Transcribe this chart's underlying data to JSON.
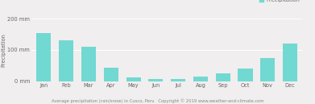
{
  "months": [
    "Jan",
    "Feb",
    "Mar",
    "Apr",
    "May",
    "Jun",
    "Jul",
    "Aug",
    "Sep",
    "Oct",
    "Nov",
    "Dec"
  ],
  "precipitation": [
    155,
    130,
    110,
    42,
    12,
    6,
    8,
    14,
    25,
    40,
    75,
    120
  ],
  "bar_color": "#72d8d2",
  "ylabel": "Precipitation",
  "ylim": [
    0,
    200
  ],
  "yticks": [
    0,
    100,
    200
  ],
  "ytick_labels": [
    "0 mm",
    "100 mm",
    "200 mm"
  ],
  "legend_label": "Precipitation",
  "legend_color": "#72d8d2",
  "footer_text": "Average precipitation (rain/snow) in Cusco, Peru   Copyright © 2019 www.weather-and-climate.com",
  "background_color": "#f0eeee",
  "grid_color": "#ffffff",
  "tick_fontsize": 4.8,
  "ylabel_fontsize": 4.8,
  "legend_fontsize": 4.8,
  "footer_fontsize": 3.8
}
